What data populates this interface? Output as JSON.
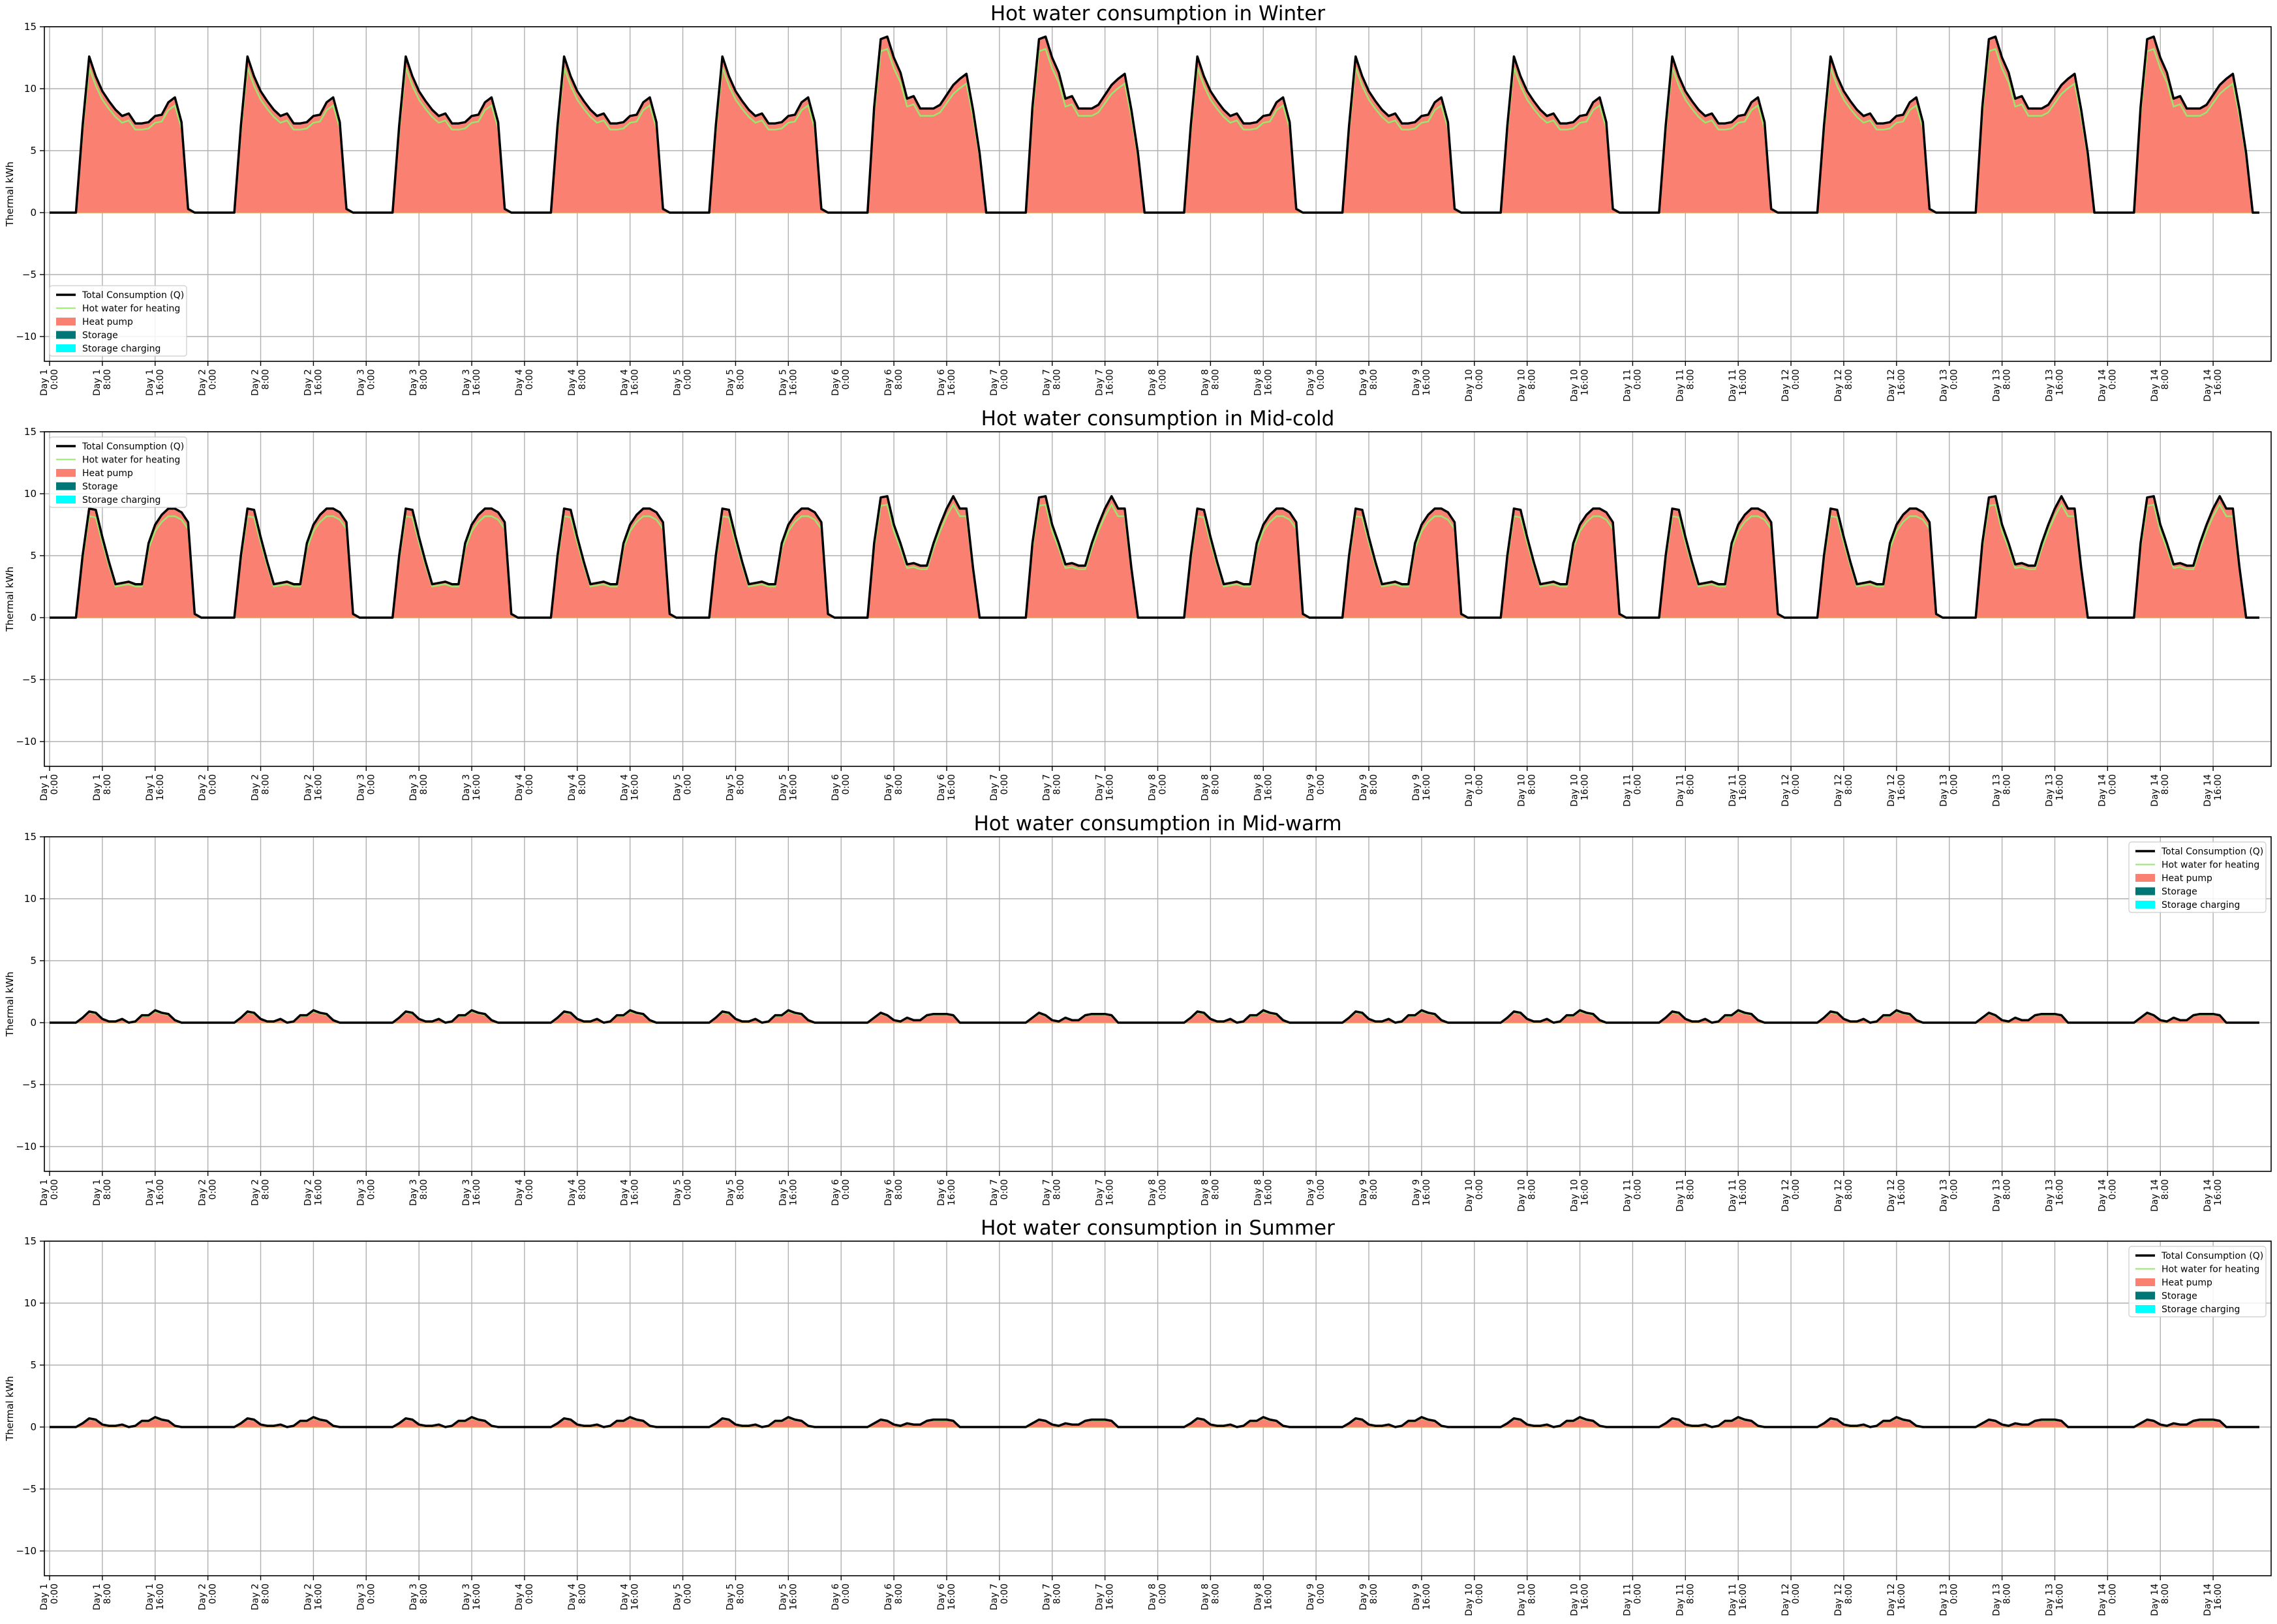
{
  "figure": {
    "background": "#ffffff",
    "days": 14,
    "y_ticks": [
      15,
      10,
      5,
      0,
      -5,
      -10
    ],
    "x_ticks_per_day": [
      "0:00",
      "8:00",
      "16:00"
    ],
    "day_label_prefix": "Day",
    "legend_items": [
      "Total Consumption (Q)",
      "Hot water for heating",
      "Heat pump",
      "Storage",
      "Storage charging"
    ],
    "colors": {
      "total": "#000000",
      "hot_water": "#9ae66e",
      "heat_pump": "#fa8072",
      "heat_pump_edge": "#e8a050",
      "storage": "#007777",
      "storage_charging": "#00ffff",
      "grid": "#b0b0b0"
    }
  },
  "chart_data": [
    {
      "type": "area",
      "title": "Hot water consumption in Winter",
      "xlabel": "",
      "ylabel": "Thermal kWh",
      "ylim": [
        -12,
        15
      ],
      "grid": true,
      "legend": "bottom-left",
      "x_unit": "hour of 14-day period",
      "profile_points": {
        "normal_day": [
          [
            0,
            0
          ],
          [
            4,
            0
          ],
          [
            5,
            7
          ],
          [
            6,
            12.6
          ],
          [
            7,
            11
          ],
          [
            8,
            9.8
          ],
          [
            9,
            9
          ],
          [
            10,
            8.3
          ],
          [
            11,
            7.8
          ],
          [
            12,
            8
          ],
          [
            13,
            7.2
          ],
          [
            14,
            7.2
          ],
          [
            15,
            7.3
          ],
          [
            16,
            7.8
          ],
          [
            17,
            7.9
          ],
          [
            18,
            8.9
          ],
          [
            19,
            9.3
          ],
          [
            20,
            7.3
          ],
          [
            21,
            0.3
          ],
          [
            22,
            0
          ],
          [
            24,
            0
          ]
        ],
        "weekend_day": [
          [
            0,
            0
          ],
          [
            4,
            0
          ],
          [
            5,
            8.5
          ],
          [
            6,
            14
          ],
          [
            7,
            14.2
          ],
          [
            8,
            12.5
          ],
          [
            9,
            11.3
          ],
          [
            10,
            9.2
          ],
          [
            11,
            9.4
          ],
          [
            12,
            8.4
          ],
          [
            13,
            8.4
          ],
          [
            14,
            8.4
          ],
          [
            15,
            8.7
          ],
          [
            16,
            9.5
          ],
          [
            17,
            10.3
          ],
          [
            18,
            10.8
          ],
          [
            19,
            11.2
          ],
          [
            20,
            8.3
          ],
          [
            21,
            4.8
          ],
          [
            22,
            0
          ],
          [
            24,
            0
          ]
        ]
      },
      "day_pattern": [
        "normal_day",
        "normal_day",
        "normal_day",
        "normal_day",
        "normal_day",
        "weekend_day",
        "weekend_day",
        "normal_day",
        "normal_day",
        "normal_day",
        "normal_day",
        "normal_day",
        "weekend_day",
        "weekend_day"
      ],
      "series": [
        {
          "name": "Total Consumption (Q)",
          "style": "line"
        },
        {
          "name": "Hot water for heating",
          "style": "line",
          "scale": 0.93
        },
        {
          "name": "Heat pump",
          "style": "fill"
        },
        {
          "name": "Storage",
          "style": "fill",
          "values": "zero"
        },
        {
          "name": "Storage charging",
          "style": "fill",
          "values": "zero"
        }
      ]
    },
    {
      "type": "area",
      "title": "Hot water consumption in Mid-cold",
      "xlabel": "",
      "ylabel": "Thermal kWh",
      "ylim": [
        -12,
        15
      ],
      "grid": true,
      "legend": "top-left",
      "x_unit": "hour of 14-day period",
      "profile_points": {
        "normal_day": [
          [
            0,
            0
          ],
          [
            4,
            0
          ],
          [
            5,
            5
          ],
          [
            6,
            8.8
          ],
          [
            7,
            8.7
          ],
          [
            8,
            6.5
          ],
          [
            9,
            4.5
          ],
          [
            10,
            2.7
          ],
          [
            11,
            2.8
          ],
          [
            12,
            2.9
          ],
          [
            13,
            2.7
          ],
          [
            14,
            2.7
          ],
          [
            15,
            6
          ],
          [
            16,
            7.5
          ],
          [
            17,
            8.3
          ],
          [
            18,
            8.8
          ],
          [
            19,
            8.8
          ],
          [
            20,
            8.5
          ],
          [
            21,
            7.7
          ],
          [
            22,
            0.3
          ],
          [
            23,
            0
          ],
          [
            24,
            0
          ]
        ],
        "weekend_day": [
          [
            0,
            0
          ],
          [
            4,
            0
          ],
          [
            5,
            6
          ],
          [
            6,
            9.7
          ],
          [
            7,
            9.8
          ],
          [
            8,
            7.5
          ],
          [
            9,
            6
          ],
          [
            10,
            4.3
          ],
          [
            11,
            4.4
          ],
          [
            12,
            4.2
          ],
          [
            13,
            4.2
          ],
          [
            14,
            6
          ],
          [
            15,
            7.5
          ],
          [
            16,
            8.8
          ],
          [
            17,
            9.8
          ],
          [
            18,
            8.8
          ],
          [
            19,
            8.8
          ],
          [
            20,
            4
          ],
          [
            21,
            0
          ],
          [
            24,
            0
          ]
        ]
      },
      "day_pattern": [
        "normal_day",
        "normal_day",
        "normal_day",
        "normal_day",
        "normal_day",
        "weekend_day",
        "weekend_day",
        "normal_day",
        "normal_day",
        "normal_day",
        "normal_day",
        "normal_day",
        "weekend_day",
        "weekend_day"
      ],
      "series": [
        {
          "name": "Total Consumption (Q)",
          "style": "line"
        },
        {
          "name": "Hot water for heating",
          "style": "line",
          "scale": 0.93
        },
        {
          "name": "Heat pump",
          "style": "fill"
        },
        {
          "name": "Storage",
          "style": "fill",
          "values": "zero"
        },
        {
          "name": "Storage charging",
          "style": "fill",
          "values": "zero"
        }
      ]
    },
    {
      "type": "area",
      "title": "Hot water consumption in Mid-warm",
      "xlabel": "",
      "ylabel": "Thermal kWh",
      "ylim": [
        -12,
        15
      ],
      "grid": true,
      "legend": "top-right",
      "x_unit": "hour of 14-day period",
      "profile_points": {
        "normal_day": [
          [
            0,
            0
          ],
          [
            4,
            0
          ],
          [
            5,
            0.4
          ],
          [
            6,
            0.9
          ],
          [
            7,
            0.8
          ],
          [
            8,
            0.3
          ],
          [
            9,
            0.1
          ],
          [
            10,
            0.1
          ],
          [
            11,
            0.3
          ],
          [
            12,
            0
          ],
          [
            13,
            0.1
          ],
          [
            14,
            0.6
          ],
          [
            15,
            0.6
          ],
          [
            16,
            1
          ],
          [
            17,
            0.8
          ],
          [
            18,
            0.7
          ],
          [
            19,
            0.2
          ],
          [
            20,
            0
          ],
          [
            24,
            0
          ]
        ],
        "weekend_day": [
          [
            0,
            0
          ],
          [
            4,
            0
          ],
          [
            5,
            0.4
          ],
          [
            6,
            0.8
          ],
          [
            7,
            0.6
          ],
          [
            8,
            0.2
          ],
          [
            9,
            0.1
          ],
          [
            10,
            0.4
          ],
          [
            11,
            0.2
          ],
          [
            12,
            0.2
          ],
          [
            13,
            0.6
          ],
          [
            14,
            0.7
          ],
          [
            15,
            0.7
          ],
          [
            16,
            0.7
          ],
          [
            17,
            0.6
          ],
          [
            18,
            0
          ],
          [
            24,
            0
          ]
        ]
      },
      "day_pattern": [
        "normal_day",
        "normal_day",
        "normal_day",
        "normal_day",
        "normal_day",
        "weekend_day",
        "weekend_day",
        "normal_day",
        "normal_day",
        "normal_day",
        "normal_day",
        "normal_day",
        "weekend_day",
        "weekend_day"
      ],
      "series": [
        {
          "name": "Total Consumption (Q)",
          "style": "line"
        },
        {
          "name": "Hot water for heating",
          "style": "line",
          "scale": 0.9
        },
        {
          "name": "Heat pump",
          "style": "fill"
        },
        {
          "name": "Storage",
          "style": "fill",
          "values": "zero"
        },
        {
          "name": "Storage charging",
          "style": "fill",
          "values": "zero"
        }
      ]
    },
    {
      "type": "area",
      "title": "Hot water consumption in Summer",
      "xlabel": "",
      "ylabel": "Thermal kWh",
      "ylim": [
        -12,
        15
      ],
      "grid": true,
      "legend": "top-right",
      "x_unit": "hour of 14-day period",
      "profile_points": {
        "normal_day": [
          [
            0,
            0
          ],
          [
            4,
            0
          ],
          [
            5,
            0.3
          ],
          [
            6,
            0.7
          ],
          [
            7,
            0.6
          ],
          [
            8,
            0.2
          ],
          [
            9,
            0.1
          ],
          [
            10,
            0.1
          ],
          [
            11,
            0.2
          ],
          [
            12,
            0
          ],
          [
            13,
            0.1
          ],
          [
            14,
            0.5
          ],
          [
            15,
            0.5
          ],
          [
            16,
            0.8
          ],
          [
            17,
            0.6
          ],
          [
            18,
            0.5
          ],
          [
            19,
            0.1
          ],
          [
            20,
            0
          ],
          [
            24,
            0
          ]
        ],
        "weekend_day": [
          [
            0,
            0
          ],
          [
            4,
            0
          ],
          [
            5,
            0.3
          ],
          [
            6,
            0.6
          ],
          [
            7,
            0.5
          ],
          [
            8,
            0.2
          ],
          [
            9,
            0.1
          ],
          [
            10,
            0.3
          ],
          [
            11,
            0.2
          ],
          [
            12,
            0.2
          ],
          [
            13,
            0.5
          ],
          [
            14,
            0.6
          ],
          [
            15,
            0.6
          ],
          [
            16,
            0.6
          ],
          [
            17,
            0.5
          ],
          [
            18,
            0
          ],
          [
            24,
            0
          ]
        ]
      },
      "day_pattern": [
        "normal_day",
        "normal_day",
        "normal_day",
        "normal_day",
        "normal_day",
        "weekend_day",
        "weekend_day",
        "normal_day",
        "normal_day",
        "normal_day",
        "normal_day",
        "normal_day",
        "weekend_day",
        "weekend_day"
      ],
      "series": [
        {
          "name": "Total Consumption (Q)",
          "style": "line"
        },
        {
          "name": "Hot water for heating",
          "style": "line",
          "scale": 0.9
        },
        {
          "name": "Heat pump",
          "style": "fill"
        },
        {
          "name": "Storage",
          "style": "fill",
          "values": "zero"
        },
        {
          "name": "Storage charging",
          "style": "fill",
          "values": "zero"
        }
      ]
    }
  ]
}
